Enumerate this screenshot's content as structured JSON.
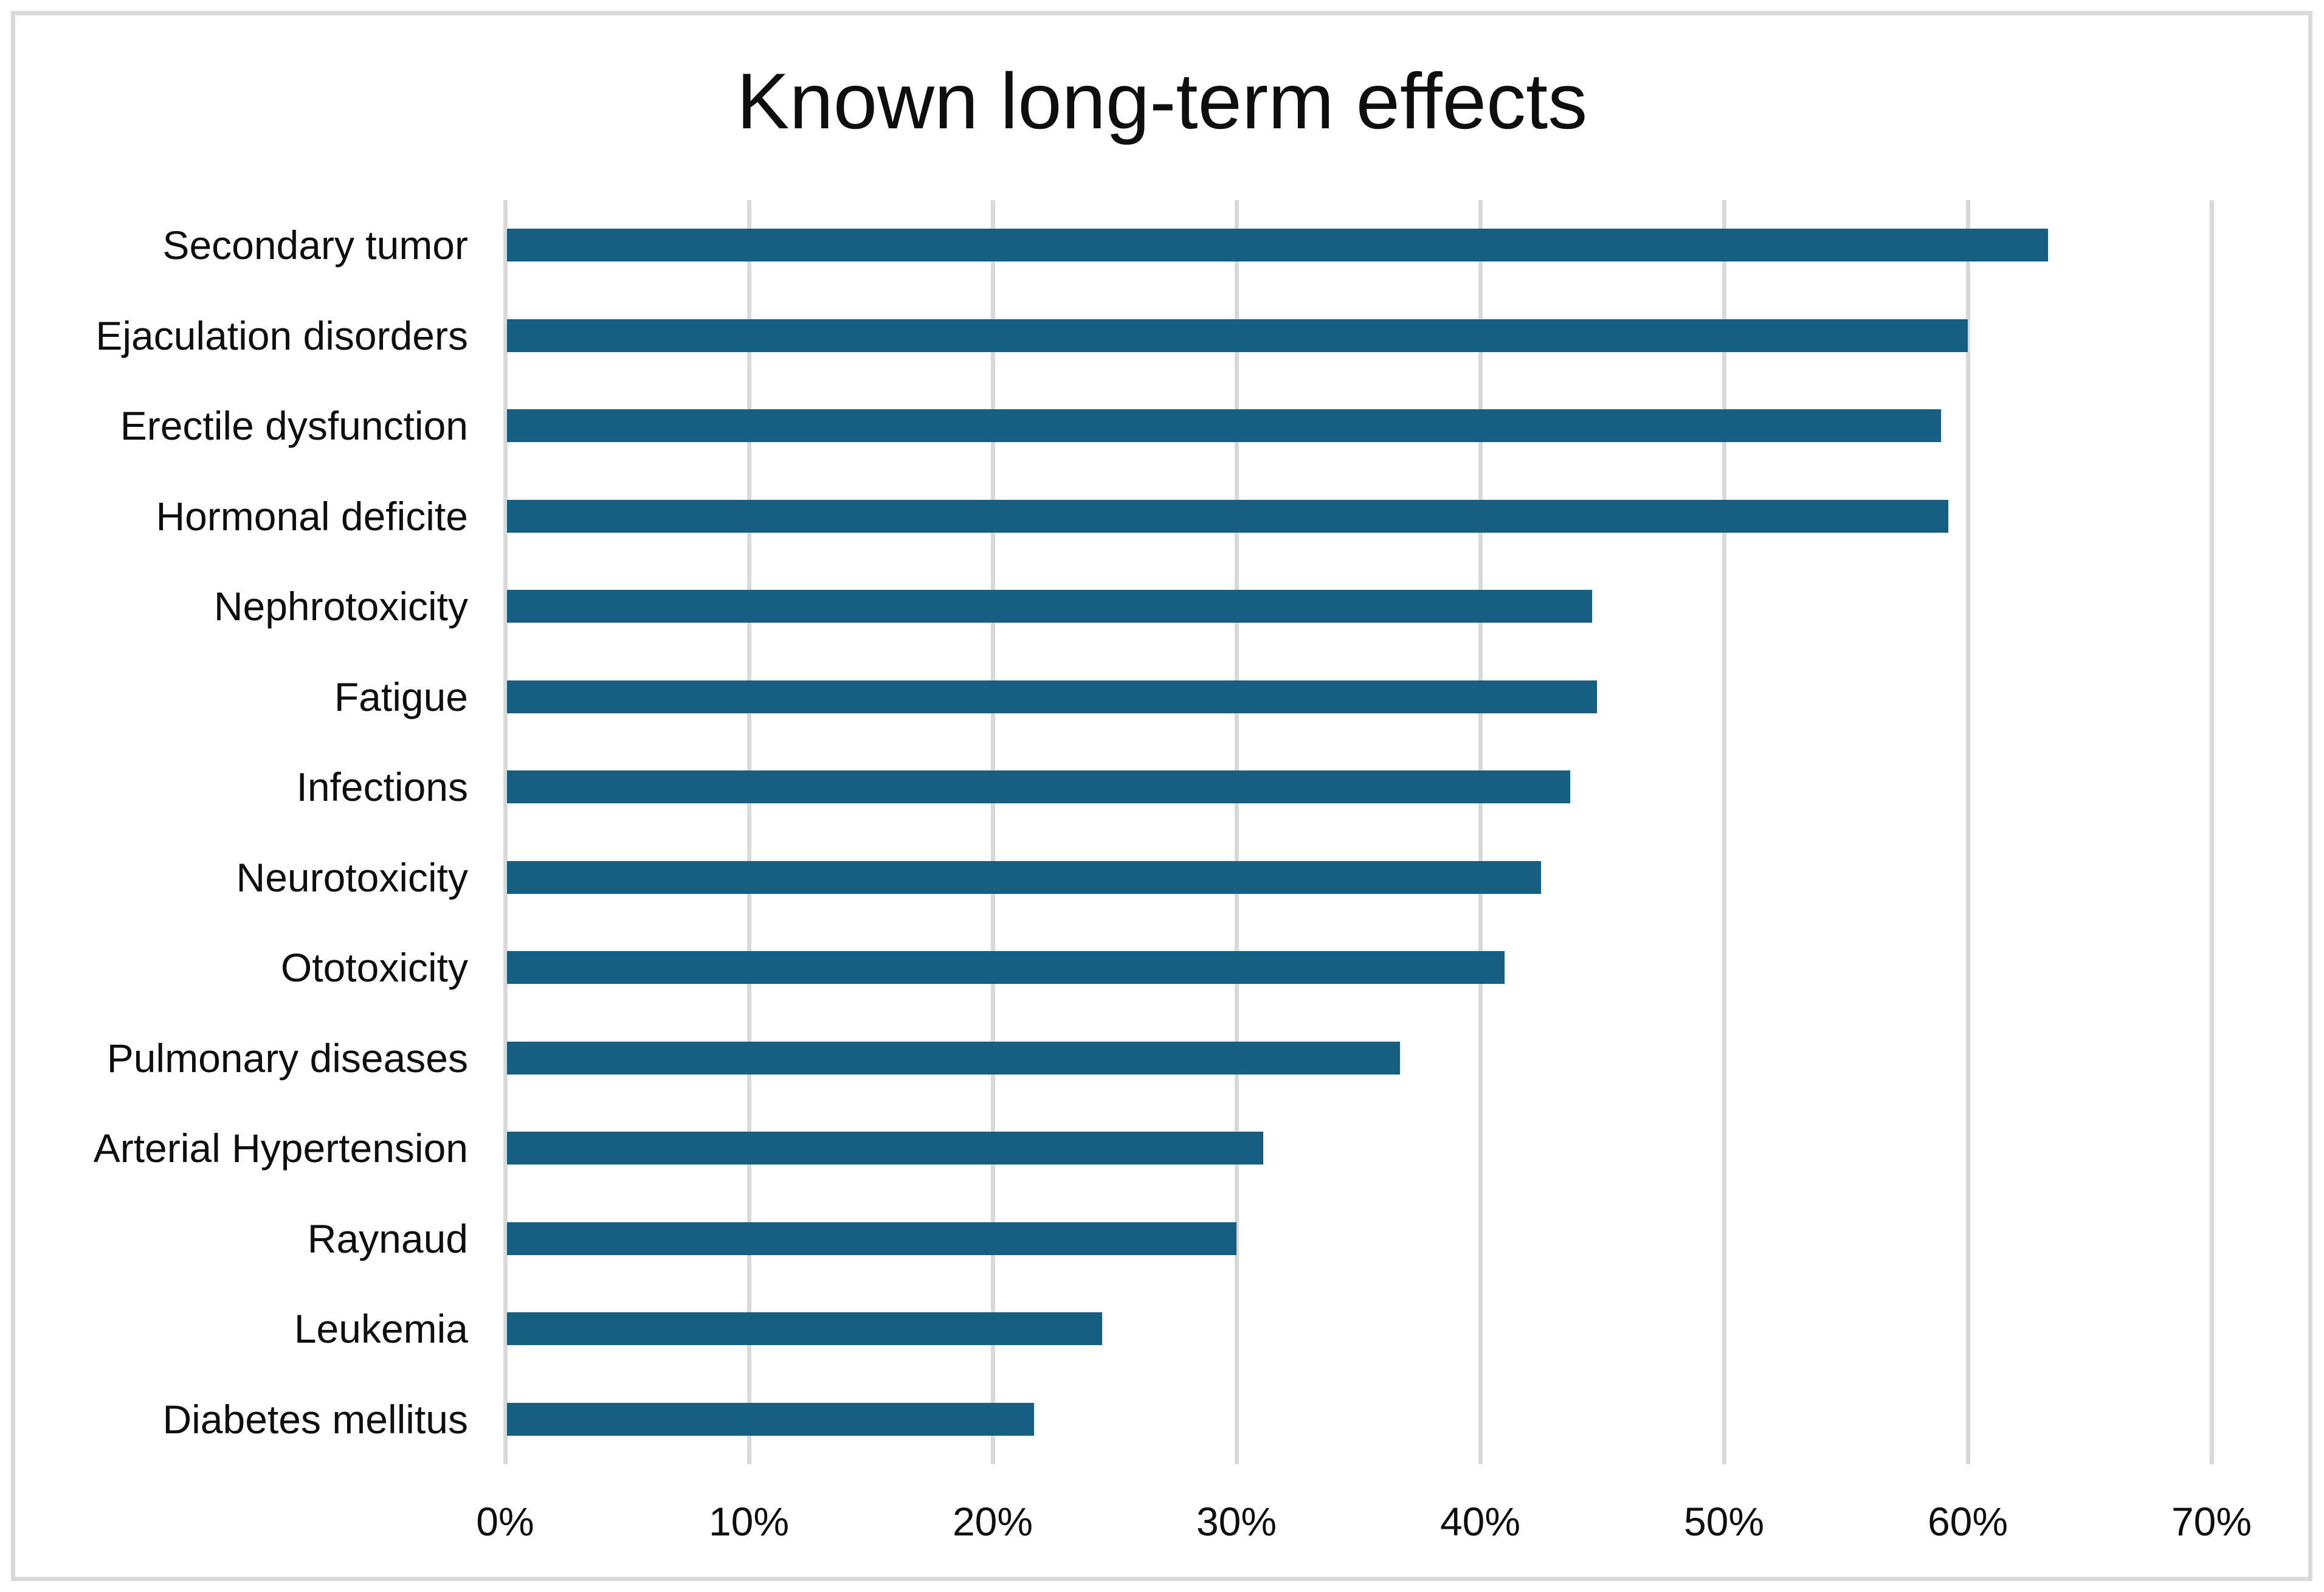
{
  "title": "Known long-term effects",
  "chart_data": {
    "type": "bar",
    "orientation": "horizontal",
    "title": "Known long-term effects",
    "xlabel": "",
    "ylabel": "",
    "categories": [
      "Secondary tumor",
      "Ejaculation disorders",
      "Erectile dysfunction",
      "Hormonal deficite",
      "Nephrotoxicity",
      "Fatigue",
      "Infections",
      "Neurotoxicity",
      "Ototoxicity",
      "Pulmonary diseases",
      "Arterial Hypertension",
      "Raynaud",
      "Leukemia",
      "Diabetes mellitus"
    ],
    "values": [
      63.3,
      60.0,
      58.9,
      59.2,
      44.6,
      44.8,
      43.7,
      42.5,
      41.0,
      36.7,
      31.1,
      30.0,
      24.5,
      21.7
    ],
    "value_unit": "%",
    "xlim": [
      0,
      70
    ],
    "x_tick_values": [
      0,
      10,
      20,
      30,
      40,
      50,
      60,
      70
    ],
    "x_tick_labels": [
      "0%",
      "10%",
      "20%",
      "30%",
      "40%",
      "50%",
      "60%",
      "70%"
    ],
    "grid": true,
    "legend": false,
    "bar_color": "#156082",
    "gridline_color": "#D9D9D9",
    "text_color": "#0e0e0e",
    "background_color": "#ffffff",
    "border_color": "#D9D9D9"
  }
}
